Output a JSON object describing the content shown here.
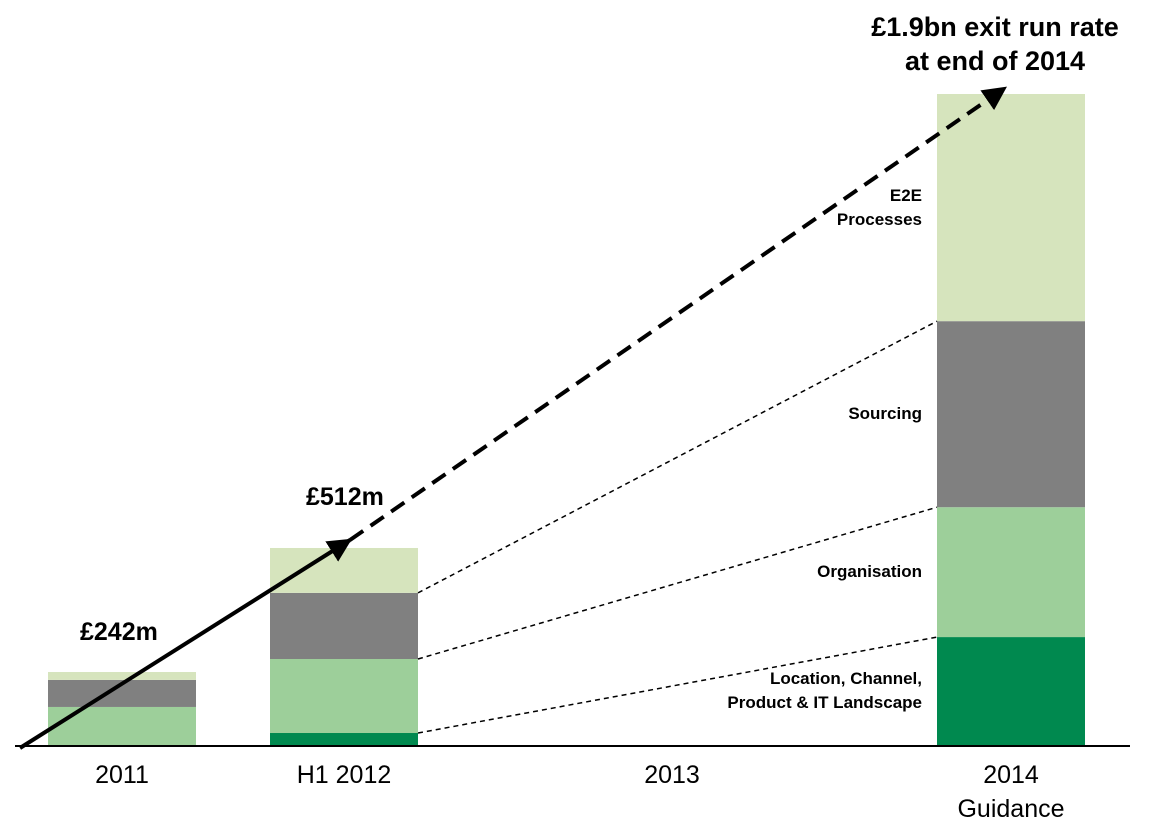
{
  "chart_data": {
    "type": "bar",
    "stacked": true,
    "title": "£1.9bn exit run rate\nat end of 2014",
    "annotations": [
      "£242m",
      "£512m"
    ],
    "categories": [
      "2011",
      "H1 2012",
      "2013",
      "2014\nGuidance"
    ],
    "series": [
      {
        "name": "Location, Channel,\nProduct & IT Landscape",
        "color": "#00894f",
        "values": [
          0,
          35,
          null,
          315
        ]
      },
      {
        "name": "Organisation",
        "color": "#9dcf9a",
        "values": [
          111,
          216,
          null,
          379
        ]
      },
      {
        "name": "Sourcing",
        "color": "#808080",
        "values": [
          79,
          193,
          null,
          543
        ]
      },
      {
        "name": "E2E\nProcesses",
        "color": "#d6e4bd",
        "values": [
          23,
          131,
          null,
          663
        ]
      }
    ],
    "ylim": [
      0,
      1900
    ]
  }
}
